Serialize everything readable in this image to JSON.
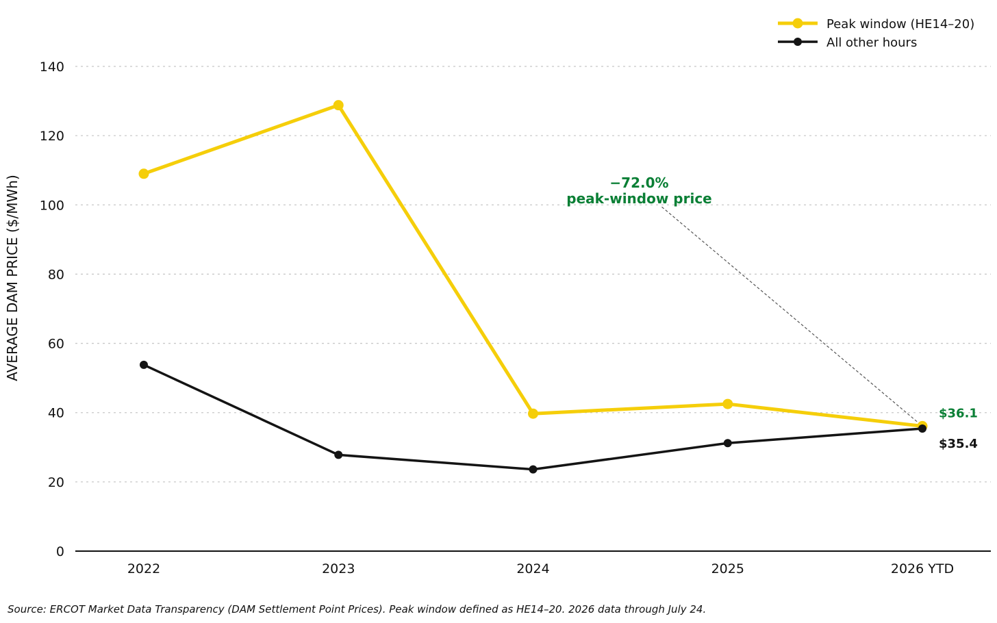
{
  "colors": {
    "peak": "#F5CE0A",
    "other": "#141414",
    "annotation": "#0A7F35",
    "grid": "#c8c8c8",
    "axis": "#111111"
  },
  "chart_data": {
    "type": "line",
    "title": "",
    "xlabel": "",
    "ylabel": "AVERAGE DAM PRICE ($/MWh)",
    "categories": [
      "2022",
      "2023",
      "2024",
      "2025",
      "2026 YTD"
    ],
    "ylim": [
      0,
      150
    ],
    "yticks": [
      0,
      20,
      40,
      60,
      80,
      100,
      120,
      140
    ],
    "grid": "horizontal dashed",
    "legend_position": "top-right",
    "series": [
      {
        "name": "Peak window (HE14–20)",
        "values": [
          109.0,
          128.8,
          39.7,
          42.5,
          36.1
        ]
      },
      {
        "name": "All other hours",
        "values": [
          53.8,
          27.8,
          23.6,
          31.2,
          35.4
        ]
      }
    ],
    "annotations": {
      "change_line1": "−72.0%",
      "change_line2": "peak-window price",
      "change_anchor": {
        "category": "2024",
        "value": 101
      },
      "peak_end_label": "$36.1",
      "other_end_label": "$35.4"
    }
  },
  "source": "Source:  ERCOT Market Data Transparency (DAM Settlement Point Prices). Peak window defined as HE14–20. 2026 data through July 24."
}
